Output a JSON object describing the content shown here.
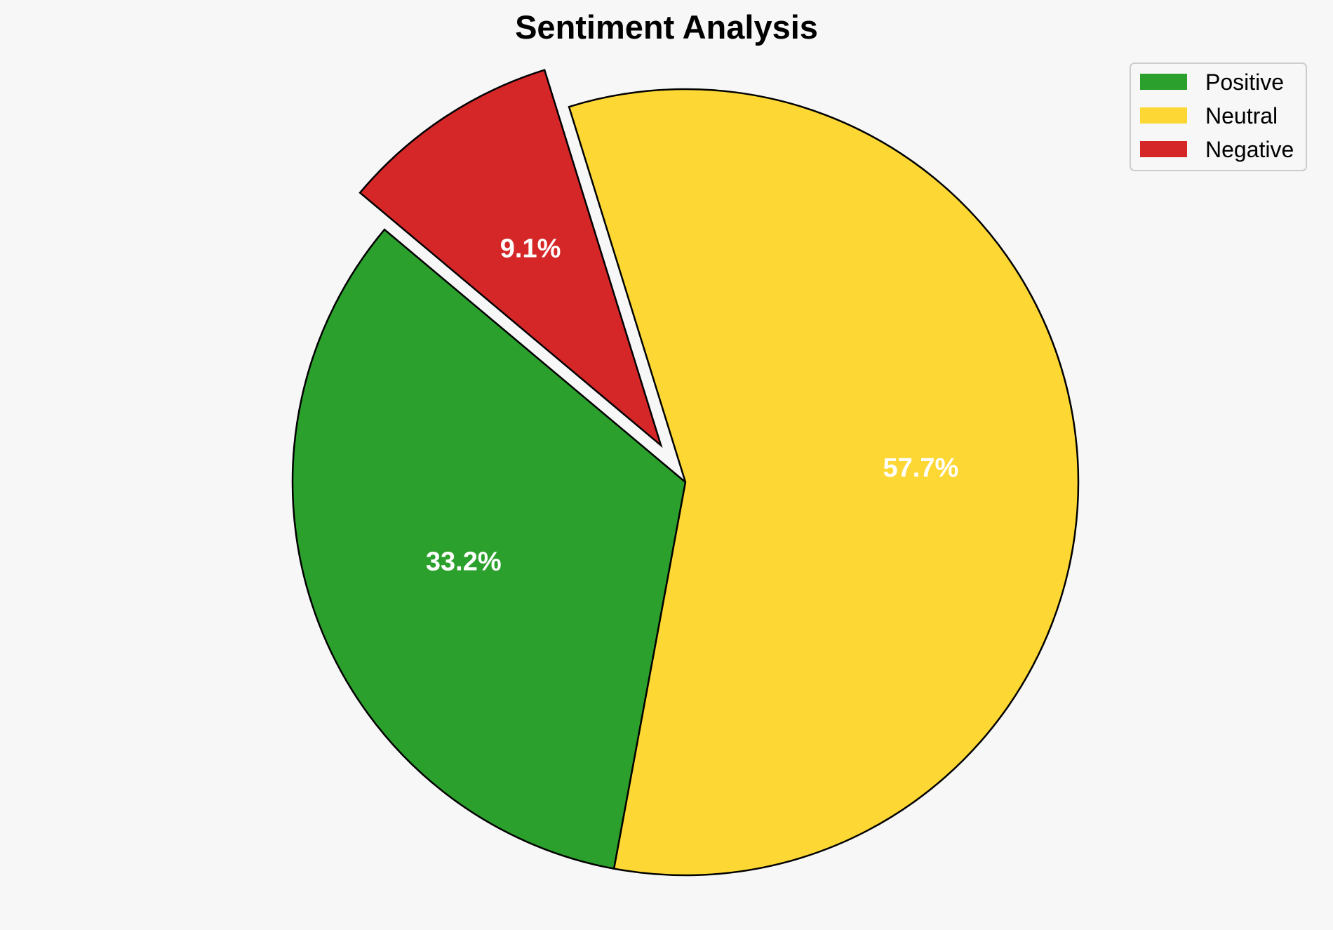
{
  "chart_data": {
    "type": "pie",
    "title": "Sentiment Analysis",
    "slices": [
      {
        "name": "Positive",
        "value": 33.2,
        "label": "33.2%",
        "color": "#2ca02c",
        "exploded": false
      },
      {
        "name": "Neutral",
        "value": 57.7,
        "label": "57.7%",
        "color": "#fdd835",
        "exploded": false
      },
      {
        "name": "Negative",
        "value": 9.1,
        "label": "9.1%",
        "color": "#d62728",
        "exploded": true
      }
    ],
    "start_angle_deg": 140,
    "direction": "counterclockwise",
    "legend": {
      "position": "top-right",
      "entries": [
        "Positive",
        "Neutral",
        "Negative"
      ]
    },
    "slice_edge_color": "#000000",
    "background": "#f7f7f7"
  }
}
